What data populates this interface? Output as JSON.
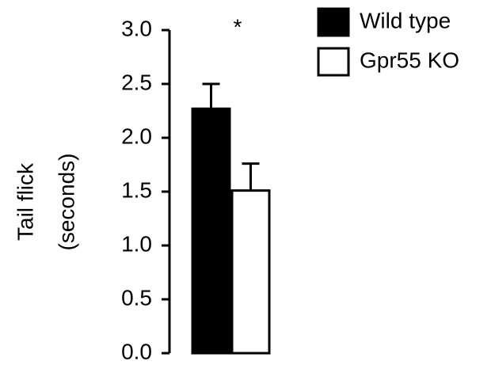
{
  "chart_data": {
    "type": "bar",
    "y_label": [
      "Tail flick",
      "(seconds)"
    ],
    "annotation": "*",
    "series": [
      {
        "name": "Wild type",
        "color": "#000000",
        "values": [
          2.27
        ],
        "errors": [
          0.23
        ]
      },
      {
        "name": "Gpr55 KO",
        "color": "#ffffff",
        "values": [
          1.51
        ],
        "errors": [
          0.25
        ]
      }
    ],
    "ylim": [
      0,
      3
    ],
    "yticks": [
      {
        "value": 0,
        "label": "0.0"
      },
      {
        "value": 0.5,
        "label": "0.5"
      },
      {
        "value": 1,
        "label": "1.0"
      },
      {
        "value": 1.5,
        "label": "1.5"
      },
      {
        "value": 2,
        "label": "2.0"
      },
      {
        "value": 2.5,
        "label": "2.5"
      },
      {
        "value": 3,
        "label": "3.0"
      }
    ],
    "grid": false,
    "legend": "top-right"
  }
}
